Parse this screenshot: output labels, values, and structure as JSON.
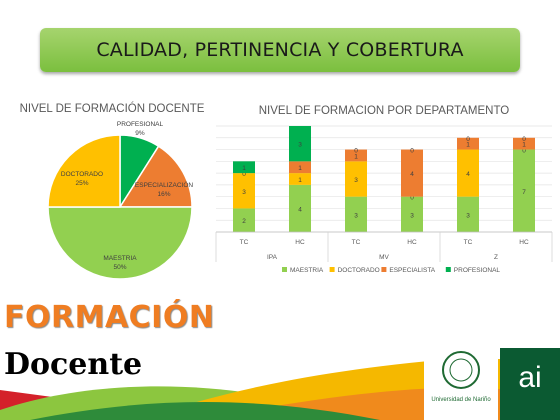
{
  "banner": {
    "title": "CALIDAD, PERTINENCIA Y COBERTURA"
  },
  "colors": {
    "maestria": "#92d050",
    "doctorado": "#ffc000",
    "especialista": "#ed7d31",
    "profesional": "#00b050"
  },
  "chart_data": [
    {
      "type": "pie",
      "title": "NIVEL DE FORMACIÓN DOCENTE",
      "slices": [
        {
          "label": "PROFESIONAL",
          "pct": "9%",
          "value": 9,
          "color": "#00b050"
        },
        {
          "label": "ESPECIALIZACIÓN",
          "pct": "16%",
          "value": 16,
          "color": "#ed7d31"
        },
        {
          "label": "MAESTRIA",
          "pct": "50%",
          "value": 50,
          "color": "#92d050"
        },
        {
          "label": "DOCTORADO",
          "pct": "25%",
          "value": 25,
          "color": "#ffc000"
        }
      ]
    },
    {
      "type": "bar",
      "stacked": true,
      "title": "NIVEL DE FORMACION POR DEPARTAMENTO",
      "categories": [
        "TC",
        "HC",
        "TC",
        "HC",
        "TC",
        "HC"
      ],
      "groups": [
        "IPA",
        "MV",
        "Z"
      ],
      "series": [
        {
          "name": "MAESTRIA",
          "color": "#92d050",
          "values": [
            2,
            4,
            3,
            3,
            3,
            7
          ]
        },
        {
          "name": "DOCTORADO",
          "color": "#ffc000",
          "values": [
            3,
            1,
            3,
            0,
            4,
            0
          ]
        },
        {
          "name": "ESPECIALISTA",
          "color": "#ed7d31",
          "values": [
            0,
            1,
            1,
            4,
            1,
            1
          ]
        },
        {
          "name": "PROFESIONAL",
          "color": "#00b050",
          "values": [
            1,
            3,
            0,
            0,
            0,
            0
          ]
        }
      ],
      "ylim": [
        0,
        9
      ],
      "grid": true,
      "legend": "bottom"
    }
  ],
  "footer": {
    "word1": "FORMACIÓN",
    "word2": "Docente",
    "logo_text": "Universidad de Nariño",
    "ai_mark": "ai"
  }
}
